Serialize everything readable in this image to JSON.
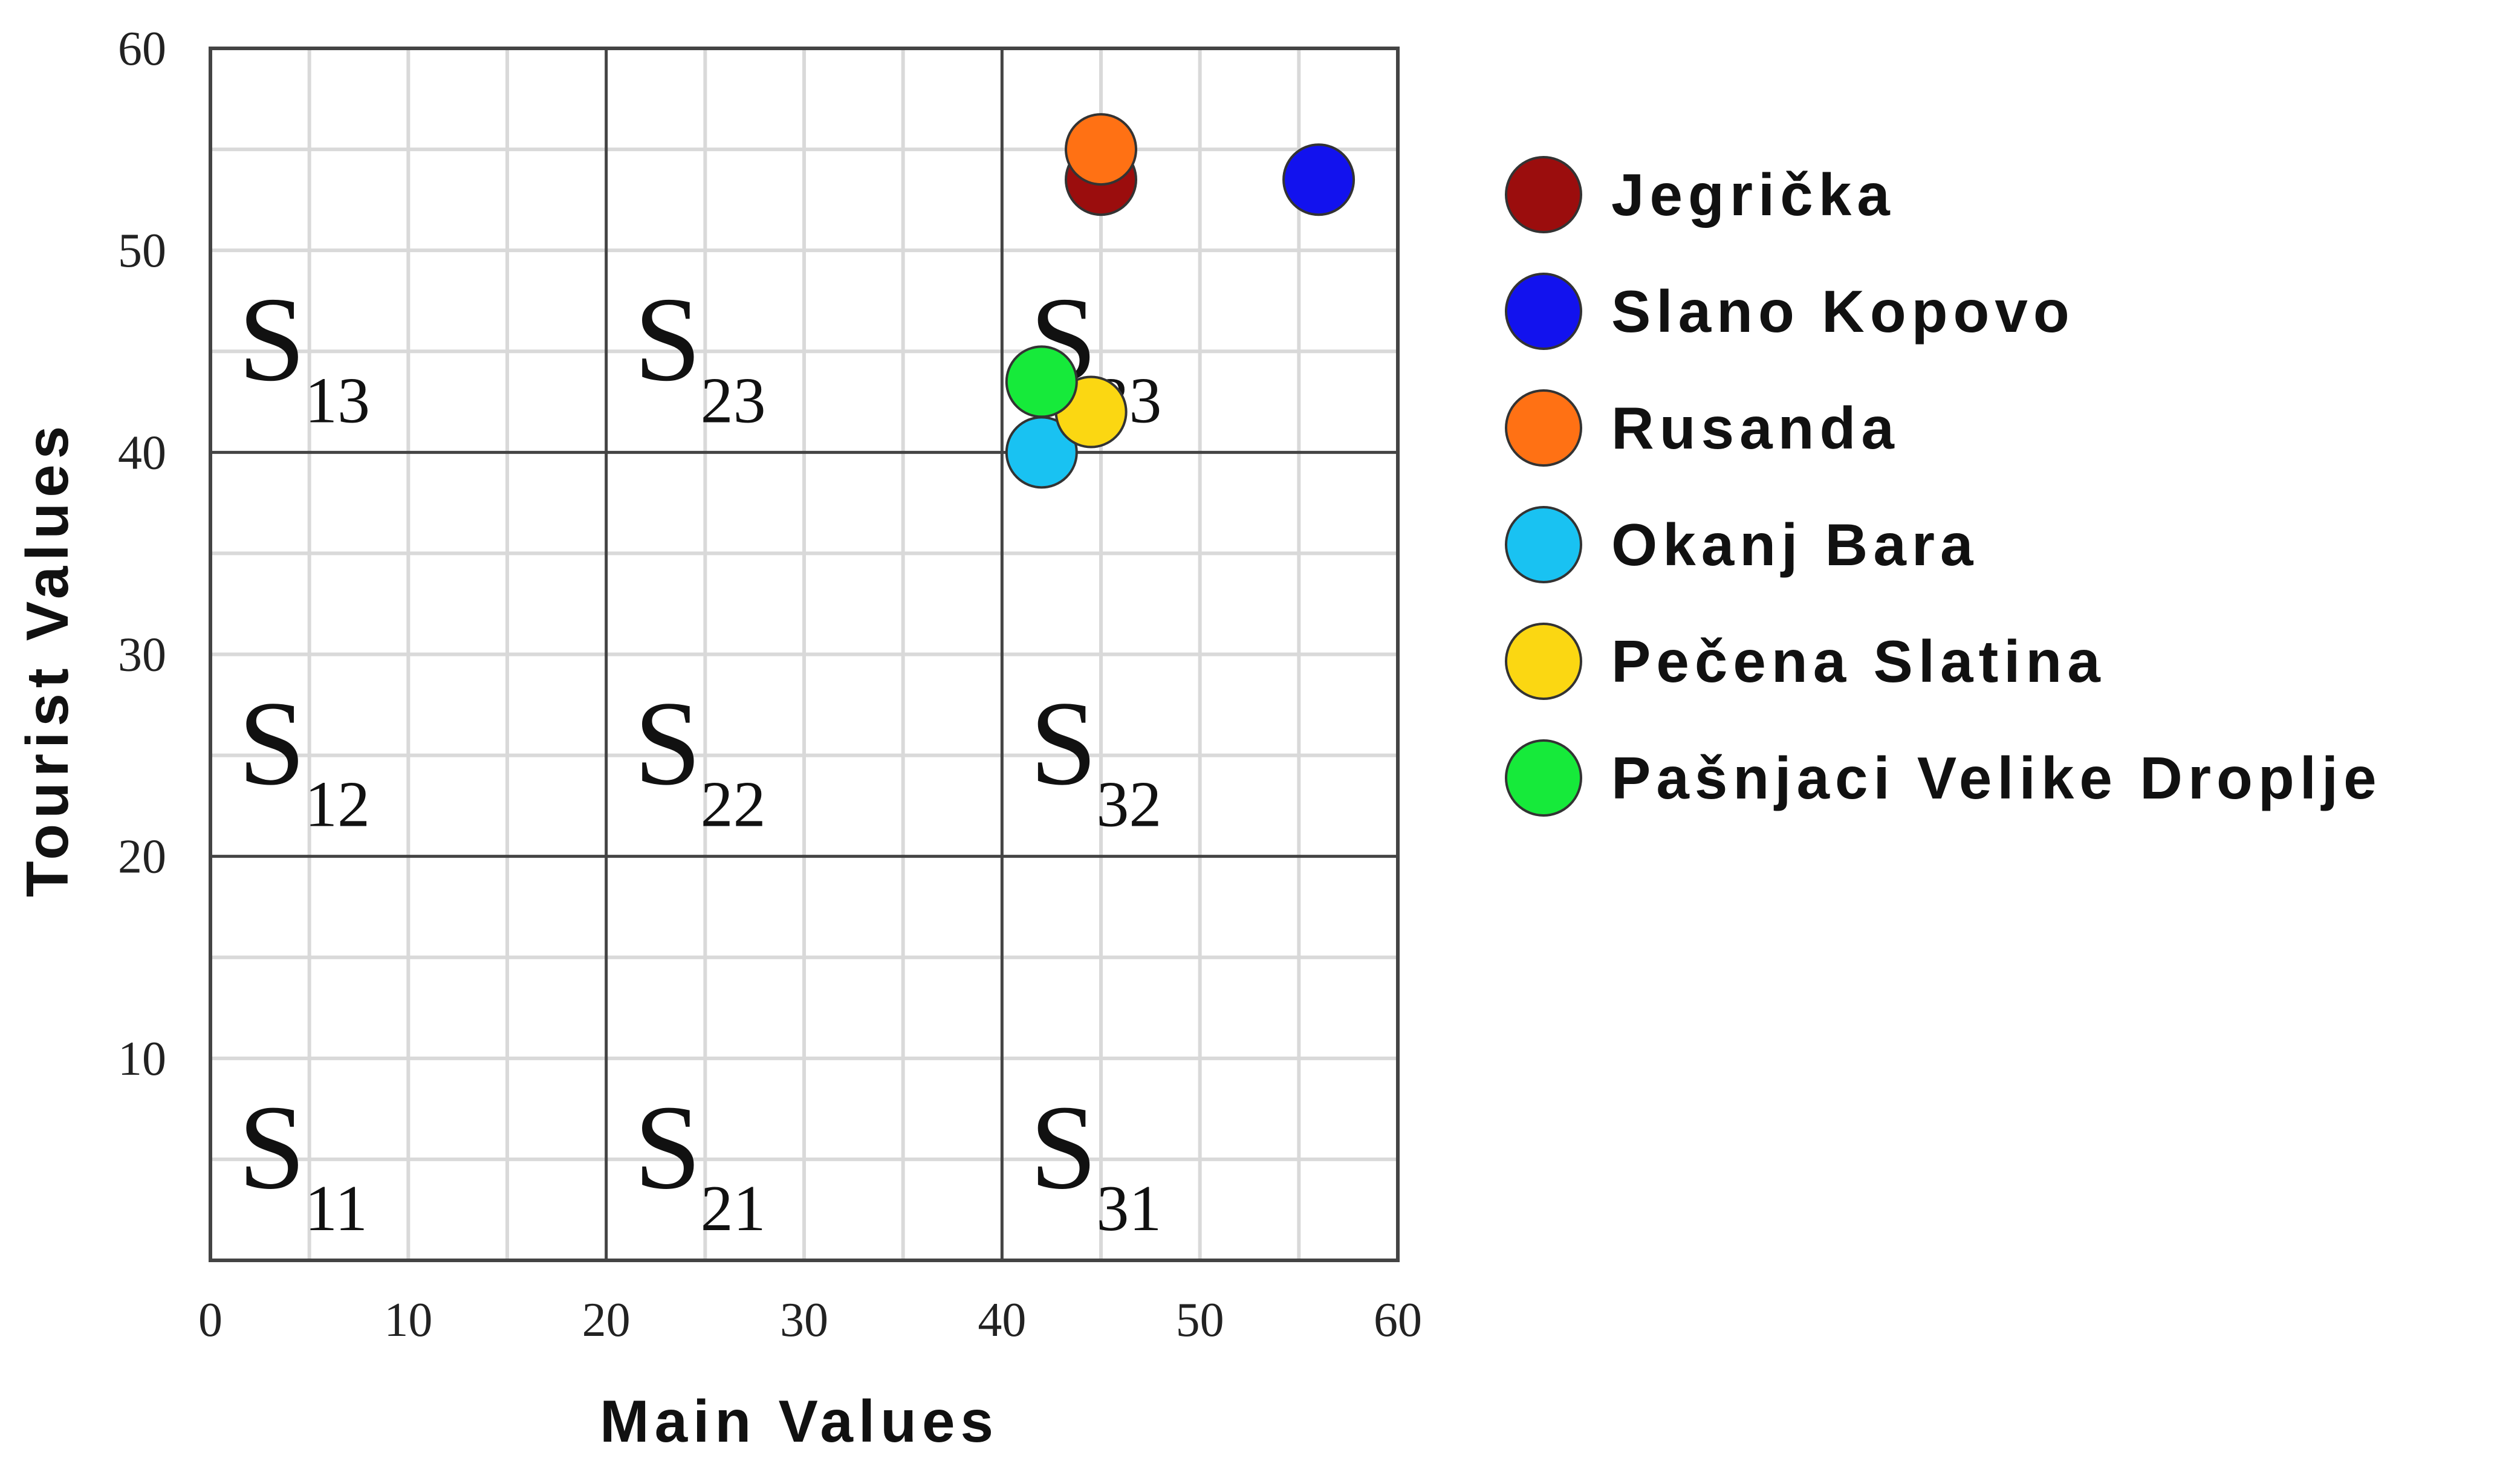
{
  "chart_data": {
    "type": "scatter",
    "xlabel": "Main Values",
    "ylabel": "Tourist Values",
    "xlim": [
      0,
      60
    ],
    "ylim": [
      0,
      60
    ],
    "x_ticks": [
      "0",
      "10",
      "20",
      "30",
      "40",
      "50",
      "60"
    ],
    "y_ticks": [
      "10",
      "20",
      "30",
      "40",
      "50",
      "60"
    ],
    "minor_grid_step": 5,
    "major_grid_step": 20,
    "grid": true,
    "legend_position": "right",
    "regions": [
      {
        "id": "S13",
        "letter": "S",
        "sub": "13"
      },
      {
        "id": "S23",
        "letter": "S",
        "sub": "23"
      },
      {
        "id": "S33",
        "letter": "S",
        "sub": "33"
      },
      {
        "id": "S12",
        "letter": "S",
        "sub": "12"
      },
      {
        "id": "S22",
        "letter": "S",
        "sub": "22"
      },
      {
        "id": "S32",
        "letter": "S",
        "sub": "32"
      },
      {
        "id": "S11",
        "letter": "S",
        "sub": "11"
      },
      {
        "id": "S21",
        "letter": "S",
        "sub": "21"
      },
      {
        "id": "S31",
        "letter": "S",
        "sub": "31"
      }
    ],
    "series": [
      {
        "name": "Jegrička",
        "x": 45,
        "y": 53.5,
        "color": "#9b0d0d"
      },
      {
        "name": "Slano Kopovo",
        "x": 56,
        "y": 53.5,
        "color": "#1212ee"
      },
      {
        "name": "Rusanda",
        "x": 45,
        "y": 55,
        "color": "#ff7114"
      },
      {
        "name": "Okanj Bara",
        "x": 42,
        "y": 40,
        "color": "#19c2f2"
      },
      {
        "name": "Pečena Slatina",
        "x": 44.5,
        "y": 42,
        "color": "#fbd712"
      },
      {
        "name": "Pašnjaci Velike Droplje",
        "x": 42,
        "y": 43.5,
        "color": "#16ea3a"
      }
    ]
  }
}
